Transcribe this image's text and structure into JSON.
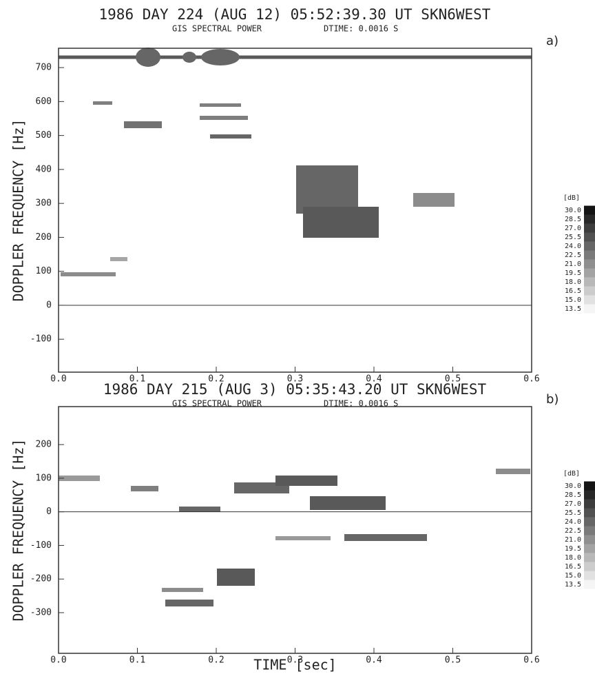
{
  "chart_data": [
    {
      "type": "spectrogram",
      "title": "1986 DAY 224 (AUG 12) 05:52:39.30 UT SKN6WEST",
      "subtitle": "GIS SPECTRAL POWER",
      "annotation": "DTIME: 0.0016 S",
      "panel_label": "a)",
      "ylabel": "DOPPLER FREQUENCY [Hz]",
      "xlim": [
        0,
        0.6
      ],
      "xticks": [
        {
          "value": 0,
          "label": "0.0"
        },
        0.1,
        0.2,
        0.3,
        0.4,
        0.5,
        0.6
      ],
      "ylim": [
        -197,
        757
      ],
      "yticks": [
        -100,
        0,
        100,
        200,
        300,
        400,
        500,
        600,
        700
      ],
      "colorbar": {
        "label": "[dB]",
        "levels": [
          {
            "value": 30,
            "label": "30.0"
          },
          28.5,
          {
            "value": 27,
            "label": "27.0"
          },
          25.5,
          {
            "value": 24,
            "label": "24.0"
          },
          22.5,
          {
            "value": 21,
            "label": "21.0"
          },
          19.5,
          {
            "value": 18,
            "label": "18.0"
          },
          16.5,
          {
            "value": 15,
            "label": "15.0"
          },
          13.5
        ]
      }
    },
    {
      "type": "spectrogram",
      "title": "1986 DAY 215 (AUG 3) 05:35:43.20 UT SKN6WEST",
      "subtitle": "GIS SPECTRAL POWER",
      "annotation": "DTIME: 0.0016 S",
      "panel_label": "b)",
      "ylabel": "DOPPLER FREQUENCY [Hz]",
      "xlabel": "TIME [sec]",
      "xlim": [
        0,
        0.6
      ],
      "xticks": [
        {
          "value": 0,
          "label": "0.0"
        },
        0.1,
        0.2,
        0.3,
        0.4,
        0.5,
        0.6
      ],
      "ylim": [
        -421,
        313
      ],
      "yticks": [
        -300,
        -200,
        -100,
        0,
        100,
        200
      ],
      "colorbar": {
        "label": "[dB]",
        "levels": [
          {
            "value": 30,
            "label": "30.0"
          },
          28.5,
          {
            "value": 27,
            "label": "27.0"
          },
          25.5,
          {
            "value": 24,
            "label": "24.0"
          },
          22.5,
          {
            "value": 21,
            "label": "21.0"
          },
          19.5,
          {
            "value": 18,
            "label": "18.0"
          },
          16.5,
          {
            "value": 15,
            "label": "15.0"
          },
          13.5
        ]
      }
    }
  ]
}
